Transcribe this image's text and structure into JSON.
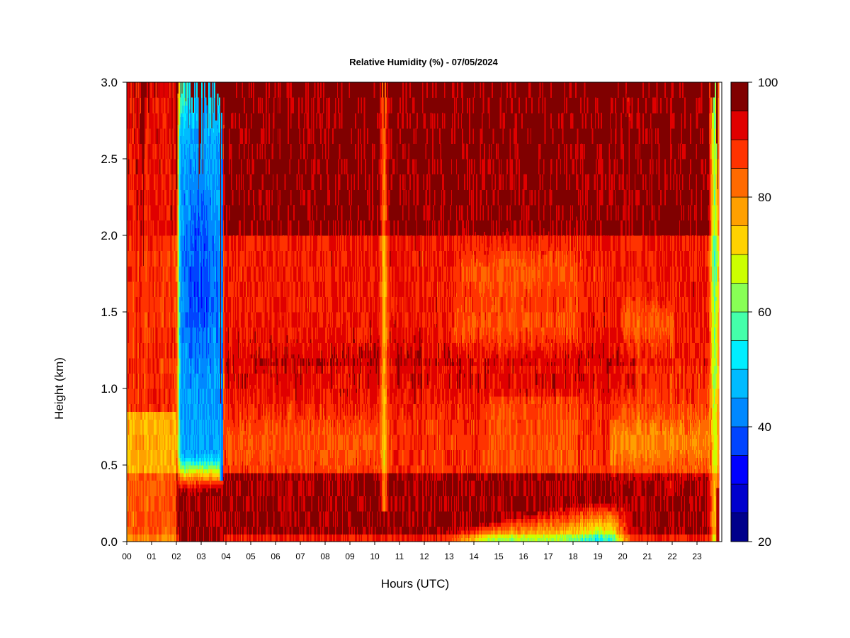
{
  "chart_data": {
    "type": "heatmap",
    "title": "Relative Humidity (%) - 07/05/2024",
    "xlabel": "Hours (UTC)",
    "ylabel": "Height (km)",
    "x_ticks": [
      "00",
      "01",
      "02",
      "03",
      "04",
      "05",
      "06",
      "07",
      "08",
      "09",
      "10",
      "11",
      "12",
      "13",
      "14",
      "15",
      "16",
      "17",
      "18",
      "19",
      "20",
      "21",
      "22",
      "23"
    ],
    "xlim": [
      0,
      24
    ],
    "y_ticks": [
      0.0,
      0.5,
      1.0,
      1.5,
      2.0,
      2.5,
      3.0
    ],
    "y_tick_labels": [
      "0.0",
      "0.5",
      "1.0",
      "1.5",
      "2.0",
      "2.5",
      "3.0"
    ],
    "ylim": [
      0,
      3
    ],
    "colorbar": {
      "range": [
        20,
        100
      ],
      "levels": [
        20,
        25,
        30,
        35,
        40,
        45,
        50,
        55,
        60,
        65,
        70,
        75,
        80,
        85,
        90,
        95,
        100
      ],
      "tick_values": [
        20,
        40,
        60,
        80,
        100
      ],
      "tick_labels": [
        "20",
        "40",
        "60",
        "80",
        "100"
      ],
      "colors": [
        "#00008b",
        "#0000cd",
        "#0000ff",
        "#0044ff",
        "#0088ff",
        "#00bbff",
        "#00eeff",
        "#44ffaa",
        "#88ff55",
        "#ccff00",
        "#ffd200",
        "#ffa000",
        "#ff6a00",
        "#ff3300",
        "#e00000",
        "#800000"
      ]
    },
    "features": [
      {
        "name": "dry column",
        "x_range": [
          2.0,
          3.9
        ],
        "y_range": [
          0.35,
          3.0
        ],
        "min_value": 38
      },
      {
        "name": "narrow moist-gap line",
        "x_range": [
          10.2,
          10.5
        ],
        "y_range": [
          0.2,
          3.0
        ],
        "value": 80
      },
      {
        "name": "surface dry layer",
        "x_range": [
          13.0,
          20.5
        ],
        "y_range": [
          0.0,
          0.25
        ],
        "min_value": 58
      },
      {
        "name": "dry edge",
        "x_range": [
          23.5,
          23.9
        ],
        "y_range": [
          0.0,
          3.0
        ],
        "min_value": 55
      },
      {
        "name": "saturated upper layer",
        "x_range": [
          4.0,
          23.5
        ],
        "y_range": [
          1.9,
          3.0
        ],
        "value": 98
      }
    ]
  }
}
